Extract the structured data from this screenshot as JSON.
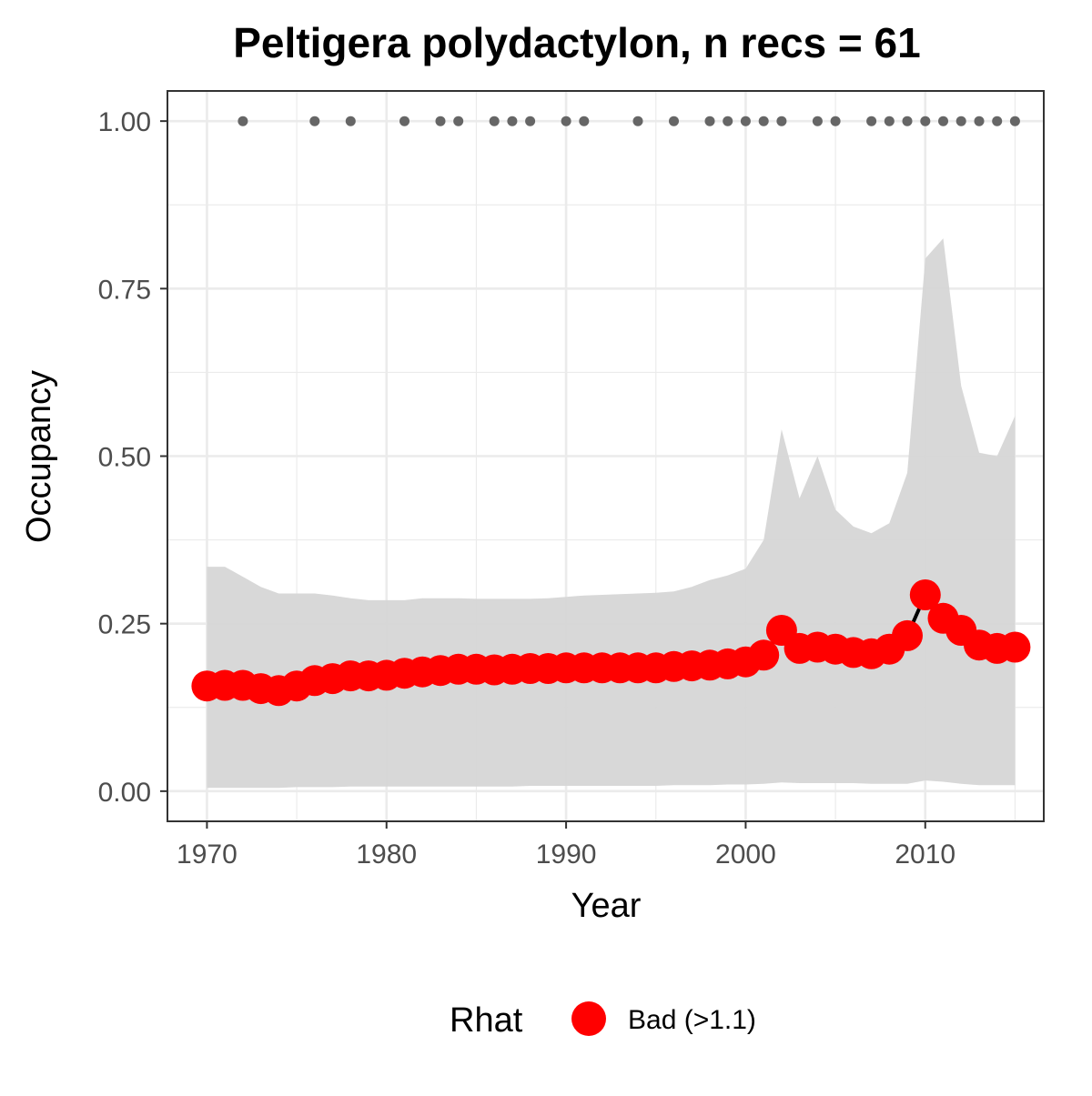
{
  "chart_data": {
    "type": "line",
    "title": "Peltigera polydactylon, n recs = 61",
    "xlabel": "Year",
    "ylabel": "Occupancy",
    "xlim": [
      1967.8,
      2016.6
    ],
    "ylim": [
      -0.045,
      1.045
    ],
    "x_ticks": [
      1970,
      1980,
      1990,
      2000,
      2010
    ],
    "x_tick_labels": [
      "1970",
      "1980",
      "1990",
      "2000",
      "2010"
    ],
    "y_ticks": [
      0,
      0.25,
      0.5,
      0.75,
      1.0
    ],
    "y_tick_labels": [
      "0.00",
      "0.25",
      "0.50",
      "0.75",
      "1.00"
    ],
    "grid": true,
    "years": [
      1970,
      1971,
      1972,
      1973,
      1974,
      1975,
      1976,
      1977,
      1978,
      1979,
      1980,
      1981,
      1982,
      1983,
      1984,
      1985,
      1986,
      1987,
      1988,
      1989,
      1990,
      1991,
      1992,
      1993,
      1994,
      1995,
      1996,
      1997,
      1998,
      1999,
      2000,
      2001,
      2002,
      2003,
      2004,
      2005,
      2006,
      2007,
      2008,
      2009,
      2010,
      2011,
      2012,
      2013,
      2014,
      2015
    ],
    "occupancy": [
      0.157,
      0.158,
      0.158,
      0.153,
      0.15,
      0.157,
      0.165,
      0.168,
      0.172,
      0.172,
      0.173,
      0.176,
      0.178,
      0.18,
      0.182,
      0.182,
      0.181,
      0.182,
      0.183,
      0.183,
      0.184,
      0.184,
      0.184,
      0.184,
      0.184,
      0.184,
      0.186,
      0.187,
      0.188,
      0.19,
      0.193,
      0.203,
      0.24,
      0.213,
      0.215,
      0.212,
      0.207,
      0.205,
      0.212,
      0.232,
      0.293,
      0.258,
      0.24,
      0.218,
      0.213,
      0.215
    ],
    "ci_lower": [
      0.005,
      0.005,
      0.005,
      0.005,
      0.005,
      0.006,
      0.006,
      0.006,
      0.007,
      0.007,
      0.007,
      0.007,
      0.007,
      0.007,
      0.007,
      0.007,
      0.007,
      0.007,
      0.008,
      0.008,
      0.008,
      0.008,
      0.008,
      0.008,
      0.008,
      0.008,
      0.009,
      0.009,
      0.009,
      0.01,
      0.01,
      0.011,
      0.013,
      0.012,
      0.012,
      0.012,
      0.012,
      0.011,
      0.011,
      0.011,
      0.016,
      0.014,
      0.011,
      0.009,
      0.009,
      0.009
    ],
    "ci_upper": [
      0.335,
      0.335,
      0.32,
      0.305,
      0.295,
      0.295,
      0.295,
      0.292,
      0.288,
      0.285,
      0.285,
      0.285,
      0.288,
      0.288,
      0.288,
      0.287,
      0.287,
      0.287,
      0.287,
      0.288,
      0.29,
      0.292,
      0.293,
      0.294,
      0.295,
      0.296,
      0.298,
      0.305,
      0.315,
      0.322,
      0.332,
      0.375,
      0.54,
      0.437,
      0.5,
      0.42,
      0.395,
      0.385,
      0.4,
      0.475,
      0.795,
      0.825,
      0.605,
      0.505,
      0.5,
      0.56
    ],
    "record_years": [
      1972,
      1976,
      1978,
      1981,
      1983,
      1984,
      1986,
      1987,
      1988,
      1990,
      1991,
      1994,
      1996,
      1998,
      1999,
      2000,
      2001,
      2002,
      2004,
      2005,
      2007,
      2008,
      2009,
      2010,
      2011,
      2012,
      2013,
      2014,
      2015
    ],
    "record_value": 1.0,
    "legend": {
      "title": "Rhat",
      "entries": [
        {
          "label": "Bad (>1.1)",
          "color": "#ff0000"
        }
      ],
      "position": "bottom"
    },
    "colors": {
      "points": "#ff0000",
      "line": "#000000",
      "ribbon": "#d6d6d6",
      "records": "#666666",
      "panel_border": "#333333",
      "grid": "#ebebeb"
    }
  }
}
